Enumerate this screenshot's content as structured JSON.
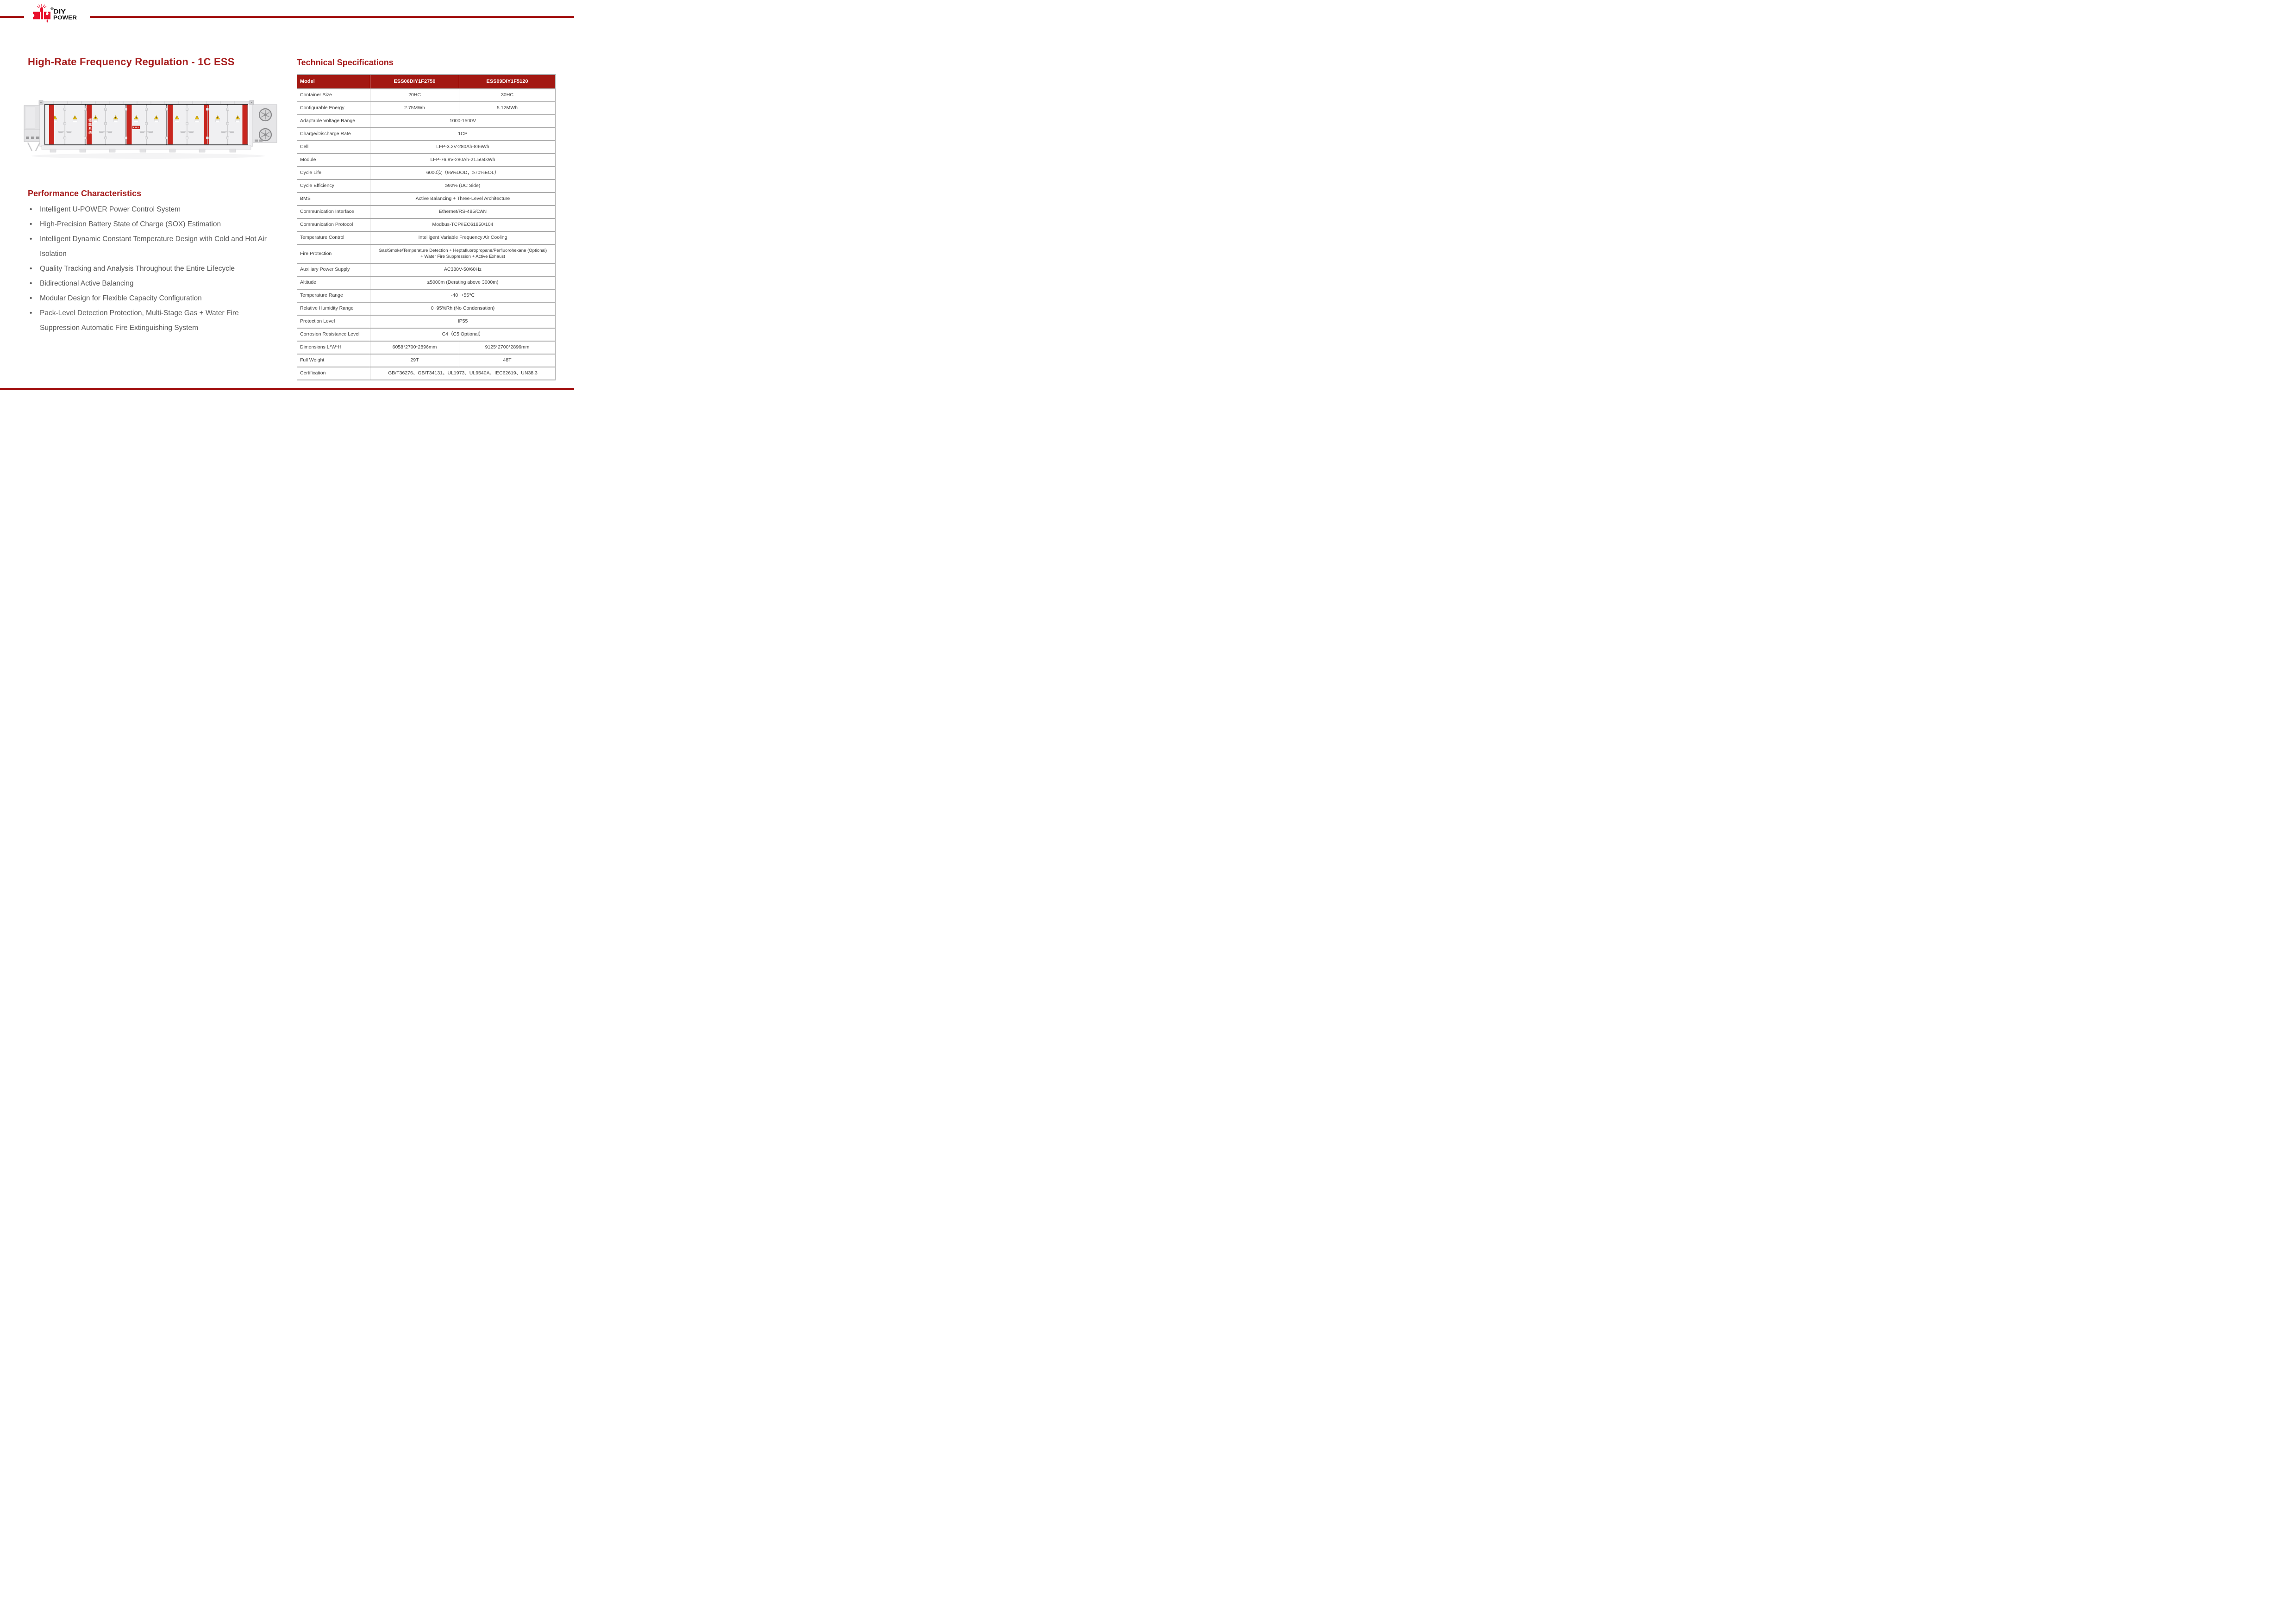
{
  "brand": {
    "wordmark_line1": "DIY",
    "wordmark_line2": "POWER",
    "registered": "R"
  },
  "left_column": {
    "title": "High-Rate Frequency Regulation - 1C ESS",
    "product_image": {
      "stripe_text": "储能系统",
      "description": "white battery energy storage container with red door stripes, warning triangle stickers, door handles, side cooling units with two fans"
    },
    "performance": {
      "heading": "Performance Characteristics",
      "bullet_char": "•",
      "bullets": [
        "Intelligent U-POWER Power Control System",
        "High-Precision Battery State of Charge (SOX) Estimation",
        "Intelligent Dynamic Constant Temperature Design with Cold and Hot Air Isolation",
        "Quality Tracking and Analysis Throughout the Entire Lifecycle",
        "Bidirectional Active Balancing",
        "Modular Design for Flexible Capacity Configuration",
        "Pack-Level Detection Protection, Multi-Stage Gas + Water Fire Suppression Automatic Fire Extinguishing System"
      ]
    }
  },
  "right_column": {
    "heading": "Technical Specifications",
    "spec_table": {
      "columns": [
        "Model",
        "ESS06DIY1F2750",
        "ESS09DIY1F5120"
      ],
      "rows": [
        {
          "label": "Container Size",
          "values": [
            "20HC",
            "30HC"
          ]
        },
        {
          "label": "Configurable Energy",
          "values": [
            "2.75MWh",
            "5.12MWh"
          ]
        },
        {
          "label": "Adaptable Voltage Range",
          "values": [
            "1000-1500V"
          ]
        },
        {
          "label": "Charge/Discharge Rate",
          "values": [
            "1CP"
          ]
        },
        {
          "label": "Cell",
          "values": [
            "LFP-3.2V-280Ah-896Wh"
          ]
        },
        {
          "label": "Module",
          "values": [
            "LFP-76.8V-280Ah-21.504kWh"
          ]
        },
        {
          "label": "Cycle Life",
          "values": [
            "6000次（95%DOD，≥70%EOL）"
          ]
        },
        {
          "label": "Cycle Efficiency",
          "values": [
            "≥92% (DC Side)"
          ]
        },
        {
          "label": "BMS",
          "values": [
            "Active Balancing + Three-Level Architecture"
          ]
        },
        {
          "label": "Communication Interface",
          "values": [
            "Ethernet/RS-485/CAN"
          ]
        },
        {
          "label": "Communication Protocol",
          "values": [
            "Modbus-TCP/IEC61850/104"
          ]
        },
        {
          "label": "Temperature Control",
          "values": [
            "Intelligent Variable Frequency Air Cooling"
          ]
        },
        {
          "label": "Fire Protection",
          "values": [
            "Gas/Smoke/Temperature Detection + Heptafluoropropane/Perfluorohexane (Optional)\n+ Water Fire Suppression + Active Exhaust"
          ],
          "tall": true
        },
        {
          "label": "Auxiliary Power Supply",
          "values": [
            "AC380V-50/60Hz"
          ]
        },
        {
          "label": "Altitude",
          "values": [
            "≤5000m (Derating above 3000m)"
          ]
        },
        {
          "label": "Temperature Range",
          "values": [
            "-40~+55℃"
          ]
        },
        {
          "label": "Relative Humidity Range",
          "values": [
            "0~95%Rh (No Condensation)"
          ]
        },
        {
          "label": "Protection Level",
          "values": [
            "IP55"
          ]
        },
        {
          "label": "Corrosion Resistance Level",
          "values": [
            "C4（C5 Optional）"
          ]
        },
        {
          "label": "Dimensions L*W*H",
          "values": [
            "6058*2700*2896mm",
            "9125*2700*2896mm"
          ]
        },
        {
          "label": "Full Weight",
          "values": [
            "29T",
            "48T"
          ]
        },
        {
          "label": "Certification",
          "values": [
            "GB/T36276、GB/T34131、UL1973、UL9540A、IEC62619、UN38.3"
          ]
        }
      ]
    }
  },
  "colors": {
    "brand_bar_red": "#A00C0C",
    "heading_red": "#A71D1D",
    "table_header_red": "#A31812",
    "logo_red": "#E8112D",
    "container_stripe_red": "#C8261F",
    "warning_yellow": "#F2C50D",
    "grid_gray": "#ABABAB",
    "body_text_gray": "#595959"
  }
}
